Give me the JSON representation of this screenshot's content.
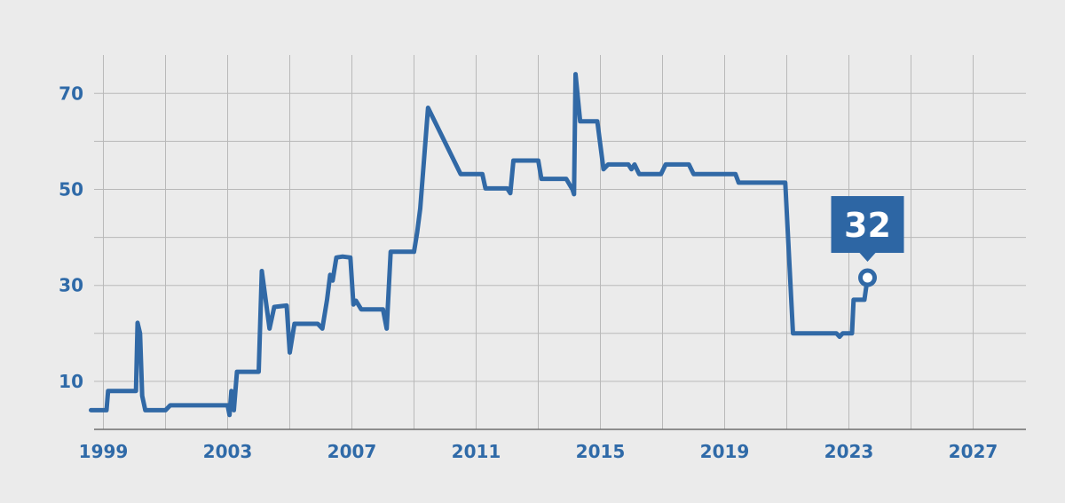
{
  "chart_data": {
    "type": "line",
    "title": "",
    "xlabel": "",
    "ylabel": "",
    "xlim": [
      1998.7,
      2028.7
    ],
    "ylim": [
      0,
      78
    ],
    "x_ticks": [
      1999,
      2003,
      2007,
      2011,
      2015,
      2019,
      2023,
      2027
    ],
    "y_ticks": [
      10,
      30,
      50,
      70
    ],
    "grid": true,
    "callout": {
      "label": "32",
      "x": 2023.6,
      "y": 31.6
    },
    "series": [
      {
        "color": "#3169a6",
        "points": [
          [
            1998.6,
            4
          ],
          [
            1999.1,
            4
          ],
          [
            1999.15,
            8
          ],
          [
            2000.05,
            8
          ],
          [
            2000.1,
            22.2
          ],
          [
            2000.18,
            20
          ],
          [
            2000.25,
            7
          ],
          [
            2000.35,
            4
          ],
          [
            2001.0,
            4
          ],
          [
            2001.15,
            5
          ],
          [
            2003.0,
            5
          ],
          [
            2003.06,
            3
          ],
          [
            2003.12,
            8
          ],
          [
            2003.2,
            4
          ],
          [
            2003.3,
            12
          ],
          [
            2004.0,
            12
          ],
          [
            2004.1,
            33
          ],
          [
            2004.35,
            21
          ],
          [
            2004.5,
            25.5
          ],
          [
            2004.9,
            25.8
          ],
          [
            2005.0,
            16
          ],
          [
            2005.15,
            22
          ],
          [
            2005.9,
            22
          ],
          [
            2006.05,
            21
          ],
          [
            2006.2,
            27
          ],
          [
            2006.3,
            32.2
          ],
          [
            2006.38,
            31
          ],
          [
            2006.5,
            35.8
          ],
          [
            2006.7,
            36
          ],
          [
            2006.95,
            35.8
          ],
          [
            2007.05,
            26
          ],
          [
            2007.13,
            26.8
          ],
          [
            2007.3,
            25
          ],
          [
            2008.0,
            25
          ],
          [
            2008.12,
            21
          ],
          [
            2008.25,
            37
          ],
          [
            2009.0,
            37
          ],
          [
            2009.1,
            41
          ],
          [
            2009.2,
            46
          ],
          [
            2009.45,
            67
          ],
          [
            2010.5,
            53.2
          ],
          [
            2011.2,
            53.2
          ],
          [
            2011.3,
            50.2
          ],
          [
            2012.0,
            50.2
          ],
          [
            2012.1,
            49.2
          ],
          [
            2012.2,
            56
          ],
          [
            2013.0,
            56
          ],
          [
            2013.1,
            52.2
          ],
          [
            2013.9,
            52.2
          ],
          [
            2014.1,
            50
          ],
          [
            2014.15,
            49
          ],
          [
            2014.2,
            74
          ],
          [
            2014.35,
            64.2
          ],
          [
            2014.9,
            64.2
          ],
          [
            2015.1,
            54.2
          ],
          [
            2015.25,
            55.2
          ],
          [
            2015.9,
            55.2
          ],
          [
            2016.0,
            54.2
          ],
          [
            2016.1,
            55.2
          ],
          [
            2016.25,
            53.2
          ],
          [
            2016.95,
            53.2
          ],
          [
            2017.1,
            55.2
          ],
          [
            2017.85,
            55.2
          ],
          [
            2018.0,
            53.2
          ],
          [
            2019.35,
            53.2
          ],
          [
            2019.45,
            51.4
          ],
          [
            2020.95,
            51.4
          ],
          [
            2021.2,
            20
          ],
          [
            2022.6,
            20
          ],
          [
            2022.7,
            19.3
          ],
          [
            2022.8,
            20
          ],
          [
            2023.1,
            20
          ],
          [
            2023.15,
            27
          ],
          [
            2023.5,
            27
          ],
          [
            2023.6,
            31.6
          ]
        ]
      }
    ]
  }
}
